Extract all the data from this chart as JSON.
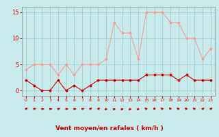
{
  "hours": [
    0,
    1,
    2,
    3,
    4,
    5,
    6,
    7,
    8,
    9,
    10,
    11,
    12,
    13,
    14,
    15,
    16,
    17,
    18,
    19,
    20,
    21,
    22,
    23
  ],
  "wind_avg": [
    2,
    1,
    0,
    0,
    2,
    0,
    1,
    0,
    1,
    2,
    2,
    2,
    2,
    2,
    2,
    3,
    3,
    3,
    3,
    2,
    3,
    2,
    2,
    2
  ],
  "wind_gust": [
    4,
    5,
    5,
    5,
    3,
    5,
    3,
    5,
    5,
    5,
    6,
    13,
    11,
    11,
    6,
    15,
    15,
    15,
    13,
    13,
    10,
    10,
    6,
    8
  ],
  "wind_dir_deg": [
    45,
    70,
    90,
    90,
    70,
    90,
    90,
    70,
    45,
    45,
    225,
    200,
    215,
    225,
    225,
    315,
    0,
    315,
    330,
    315,
    315,
    315,
    45,
    45
  ],
  "color_avg": "#cc0000",
  "color_gust": "#ff9999",
  "bg_color": "#c8eaea",
  "grid_color": "#99cccc",
  "xlabel": "Vent moyen/en rafales ( km/h )",
  "xlabel_color": "#cc0000",
  "yticks": [
    0,
    5,
    10,
    15
  ],
  "ylim": [
    -1,
    16
  ],
  "xlim": [
    -0.5,
    23.5
  ],
  "tick_color": "#cc0000",
  "arrow_color": "#cc0000",
  "spine_color": "#888888"
}
